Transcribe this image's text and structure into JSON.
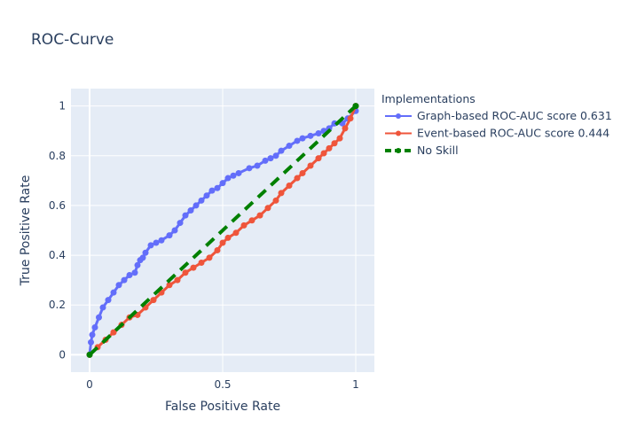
{
  "chart_data": {
    "type": "line",
    "title": "ROC-Curve",
    "xlabel": "False Positive Rate",
    "ylabel": "True Positive Rate",
    "xlim": [
      -0.07,
      1.07
    ],
    "ylim": [
      -0.07,
      1.07
    ],
    "x_ticks": [
      0,
      0.5,
      1
    ],
    "x_tick_labels": [
      "0",
      "0.5",
      "1"
    ],
    "y_ticks": [
      0,
      0.2,
      0.4,
      0.6,
      0.8,
      1
    ],
    "y_tick_labels": [
      "0",
      "0.2",
      "0.4",
      "0.6",
      "0.8",
      "1"
    ],
    "grid": true,
    "legend": {
      "title": "Implementations",
      "placement": "right"
    },
    "series": [
      {
        "name": "Graph-based ROC-AUC score 0.631",
        "color": "#636efa",
        "style": "lines+markers",
        "x": [
          0,
          0.005,
          0.01,
          0.02,
          0.035,
          0.05,
          0.07,
          0.09,
          0.11,
          0.13,
          0.15,
          0.17,
          0.18,
          0.19,
          0.2,
          0.21,
          0.23,
          0.25,
          0.27,
          0.3,
          0.32,
          0.34,
          0.36,
          0.38,
          0.4,
          0.42,
          0.44,
          0.46,
          0.48,
          0.5,
          0.52,
          0.54,
          0.56,
          0.6,
          0.63,
          0.66,
          0.68,
          0.7,
          0.72,
          0.75,
          0.78,
          0.8,
          0.83,
          0.86,
          0.88,
          0.9,
          0.92,
          0.95,
          0.97,
          1.0
        ],
        "y": [
          0,
          0.05,
          0.08,
          0.11,
          0.15,
          0.19,
          0.22,
          0.25,
          0.28,
          0.3,
          0.32,
          0.33,
          0.36,
          0.38,
          0.39,
          0.41,
          0.44,
          0.45,
          0.46,
          0.48,
          0.5,
          0.53,
          0.56,
          0.58,
          0.6,
          0.62,
          0.64,
          0.66,
          0.67,
          0.69,
          0.71,
          0.72,
          0.73,
          0.75,
          0.76,
          0.78,
          0.79,
          0.8,
          0.82,
          0.84,
          0.86,
          0.87,
          0.88,
          0.89,
          0.9,
          0.91,
          0.93,
          0.93,
          0.95,
          0.98
        ]
      },
      {
        "name": "Event-based ROC-AUC score 0.444",
        "color": "#ef553b",
        "style": "lines+markers",
        "x": [
          0,
          0.03,
          0.06,
          0.09,
          0.12,
          0.15,
          0.18,
          0.21,
          0.24,
          0.27,
          0.3,
          0.33,
          0.36,
          0.39,
          0.42,
          0.45,
          0.48,
          0.5,
          0.52,
          0.55,
          0.58,
          0.61,
          0.64,
          0.67,
          0.7,
          0.72,
          0.75,
          0.78,
          0.8,
          0.83,
          0.86,
          0.88,
          0.9,
          0.92,
          0.94,
          0.96,
          0.98,
          1.0
        ],
        "y": [
          0,
          0.03,
          0.06,
          0.09,
          0.12,
          0.15,
          0.16,
          0.19,
          0.22,
          0.25,
          0.28,
          0.3,
          0.33,
          0.35,
          0.37,
          0.39,
          0.42,
          0.45,
          0.47,
          0.49,
          0.52,
          0.54,
          0.56,
          0.59,
          0.62,
          0.65,
          0.68,
          0.71,
          0.73,
          0.76,
          0.79,
          0.81,
          0.83,
          0.85,
          0.87,
          0.91,
          0.95,
          1.0
        ]
      },
      {
        "name": "No Skill",
        "color": "#008000",
        "style": "dashed",
        "x": [
          0,
          1
        ],
        "y": [
          0,
          1
        ]
      }
    ]
  }
}
